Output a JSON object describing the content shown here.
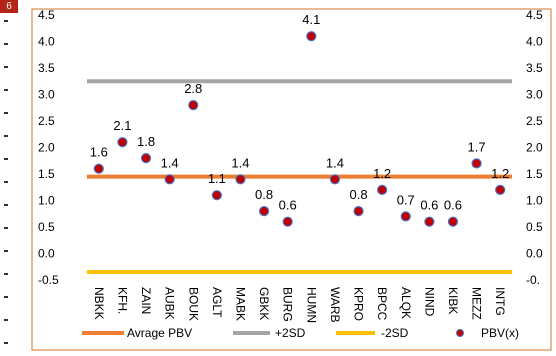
{
  "edge_badge": "6",
  "chart_data": {
    "type": "scatter",
    "categories": [
      "NBKK",
      "KFH.",
      "ZAIN",
      "AUBK",
      "BOUK",
      "AGLT",
      "MABK",
      "GBKK",
      "BURG",
      "HUMN",
      "WARB",
      "KPRO",
      "BPCC",
      "ALQK",
      "NIND",
      "KIBK",
      "MEZZ",
      "INTG"
    ],
    "series": [
      {
        "name": "Avrage PBV",
        "kind": "line",
        "color": "#ED7D31",
        "values": [
          1.45,
          1.45,
          1.45,
          1.45,
          1.45,
          1.45,
          1.45,
          1.45,
          1.45,
          1.45,
          1.45,
          1.45,
          1.45,
          1.45,
          1.45,
          1.45,
          1.45,
          1.45
        ]
      },
      {
        "name": "+2SD",
        "kind": "line",
        "color": "#A5A5A5",
        "values": [
          3.25,
          3.25,
          3.25,
          3.25,
          3.25,
          3.25,
          3.25,
          3.25,
          3.25,
          3.25,
          3.25,
          3.25,
          3.25,
          3.25,
          3.25,
          3.25,
          3.25,
          3.25
        ]
      },
      {
        "name": "-2SD",
        "kind": "line",
        "color": "#FFC000",
        "values": [
          -0.35,
          -0.35,
          -0.35,
          -0.35,
          -0.35,
          -0.35,
          -0.35,
          -0.35,
          -0.35,
          -0.35,
          -0.35,
          -0.35,
          -0.35,
          -0.35,
          -0.35,
          -0.35,
          -0.35,
          -0.35
        ]
      },
      {
        "name": "PBV(x)",
        "kind": "markers",
        "color": "#C00000",
        "edge_color": "#4472C4",
        "values": [
          1.6,
          2.1,
          1.8,
          1.4,
          2.8,
          1.1,
          1.4,
          0.8,
          0.6,
          4.1,
          1.4,
          0.8,
          1.2,
          0.7,
          0.6,
          0.6,
          1.7,
          1.2
        ],
        "labels": [
          "1.6",
          "2.1",
          "1.8",
          "1.4",
          "2.8",
          "1.1",
          "1.4",
          "0.8",
          "0.6",
          "4.1",
          "1.4",
          "0.8",
          "1.2",
          "0.7",
          "0.6",
          "0.6",
          "1.7",
          "1.2"
        ]
      }
    ],
    "ylim": [
      -0.5,
      4.5
    ],
    "y_ticks": [
      "4.5",
      "4.0",
      "3.5",
      "3.0",
      "2.5",
      "2.0",
      "1.5",
      "1.0",
      "0.5",
      "0.0",
      "-0.5"
    ],
    "y_tick_values": [
      4.5,
      4.0,
      3.5,
      3.0,
      2.5,
      2.0,
      1.5,
      1.0,
      0.5,
      0.0,
      -0.5
    ],
    "secondary_y_ticks": [
      "4.5",
      "4.0",
      "3.5",
      "3.0",
      "2.5",
      "2.0",
      "1.5",
      "1.0",
      "0.5",
      "0.0",
      "-0."
    ],
    "legend": {
      "position": "bottom",
      "items": [
        "Avrage PBV",
        "+2SD",
        "-2SD",
        "PBV(x)"
      ]
    },
    "grid": false,
    "title": "",
    "xlabel": "",
    "ylabel": ""
  }
}
